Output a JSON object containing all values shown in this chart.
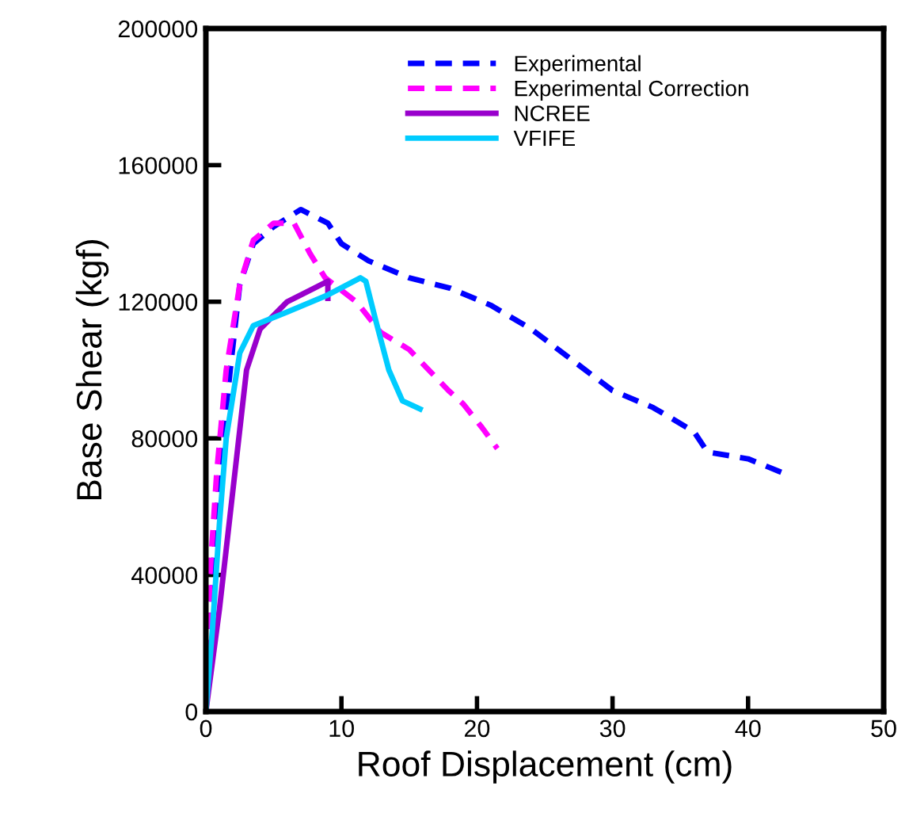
{
  "chart_data": {
    "type": "line",
    "xlabel": "Roof Displacement (cm)",
    "ylabel": "Base Shear (kgf)",
    "xlim": [
      0,
      50
    ],
    "xticks": [
      0,
      10,
      20,
      30,
      40,
      50
    ],
    "ylim": [
      0,
      200000
    ],
    "yticks": [
      0,
      40000,
      80000,
      120000,
      160000,
      200000
    ],
    "grid": false,
    "legend": "top",
    "marker": "none",
    "series": [
      {
        "name": "Experimental",
        "color": "#0000ff",
        "line_style": "dashed",
        "x": [
          0,
          0.3,
          0.6,
          1,
          1.8,
          2.5,
          3.5,
          5,
          7,
          9,
          10,
          12,
          15,
          18,
          21,
          24,
          27,
          30,
          33,
          36,
          37,
          40,
          42.5
        ],
        "values": [
          0,
          20000,
          45000,
          70000,
          100000,
          125000,
          137000,
          142000,
          147000,
          143000,
          137000,
          132000,
          127000,
          124000,
          119000,
          112000,
          103000,
          94000,
          89000,
          82000,
          76000,
          74000,
          70000
        ]
      },
      {
        "name": "Experimental Correction",
        "color": "#ff00ff",
        "line_style": "dashed",
        "x": [
          0,
          0.3,
          0.8,
          1.5,
          2.5,
          3.5,
          5,
          6.5,
          7.7,
          8.8,
          11.1,
          12.9,
          15,
          17.9,
          19,
          20.4,
          21.5
        ],
        "values": [
          0,
          40000,
          70000,
          100000,
          125000,
          138000,
          143000,
          143000,
          134000,
          127000,
          120000,
          111000,
          106000,
          94000,
          90000,
          83000,
          77000
        ]
      },
      {
        "name": "NCREE",
        "color": "#9900cc",
        "line_style": "solid",
        "x": [
          0,
          1,
          2,
          3,
          4,
          6,
          8,
          9,
          9
        ],
        "values": [
          0,
          30000,
          65000,
          100000,
          112000,
          120000,
          124000,
          126000,
          121000
        ]
      },
      {
        "name": "VFIFE",
        "color": "#00ccff",
        "line_style": "solid",
        "x": [
          0,
          0.5,
          1,
          1.5,
          2.5,
          3.5,
          6,
          9,
          11.4,
          11.8,
          12.5,
          13.5,
          14.5,
          15.8
        ],
        "values": [
          0,
          25000,
          55000,
          80000,
          105000,
          113000,
          117000,
          122000,
          127000,
          126000,
          115000,
          100000,
          91000,
          88600
        ]
      }
    ]
  }
}
